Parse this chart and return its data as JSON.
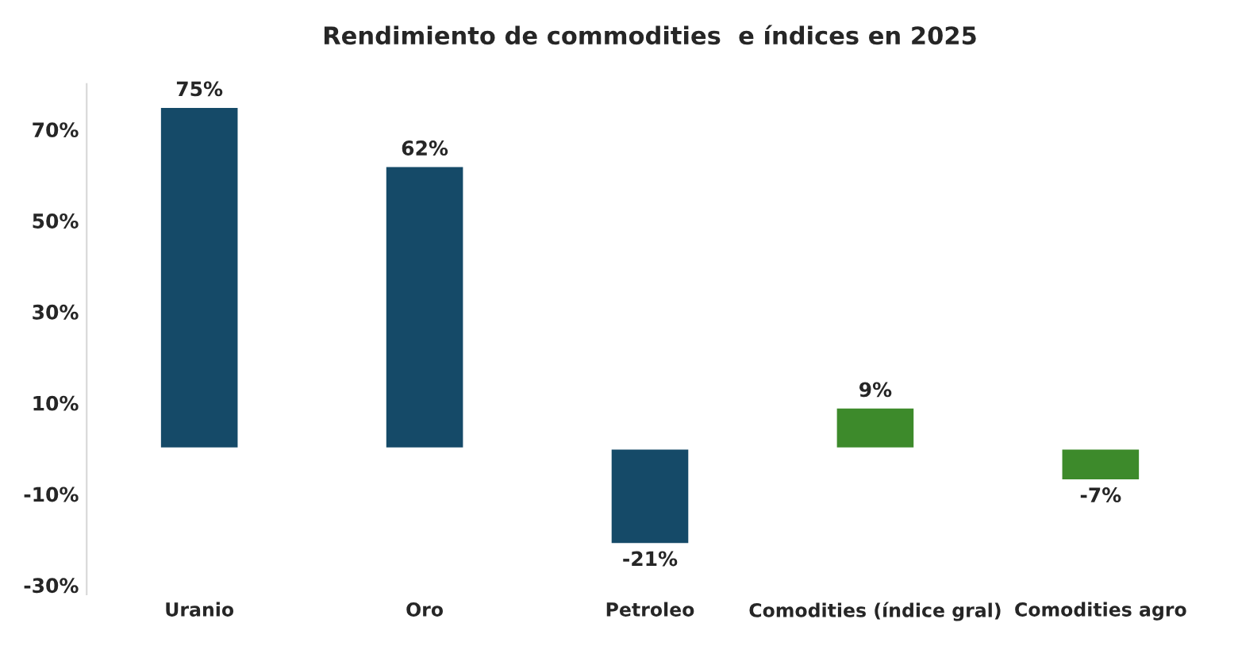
{
  "chart_data": {
    "type": "bar",
    "title": "Rendimiento de commodities  e índices en 2025",
    "categories": [
      "Uranio",
      "Oro",
      "Petroleo",
      "Comodities (índice gral)",
      "Comodities agro"
    ],
    "values": [
      75,
      62,
      -21,
      9,
      -7
    ],
    "colors": [
      "#154a68",
      "#154a68",
      "#154a68",
      "#3d8a2b",
      "#3d8a2b"
    ],
    "value_labels": [
      "75%",
      "62%",
      "-21%",
      "9%",
      "-7%"
    ],
    "ylim": [
      -32,
      80
    ],
    "yticks": [
      {
        "value": -30,
        "label": "-30%"
      },
      {
        "value": -10,
        "label": "-10%"
      },
      {
        "value": 10,
        "label": "10%"
      },
      {
        "value": 30,
        "label": "30%"
      },
      {
        "value": 50,
        "label": "50%"
      },
      {
        "value": 70,
        "label": "70%"
      }
    ],
    "grid": false,
    "legend": false
  }
}
